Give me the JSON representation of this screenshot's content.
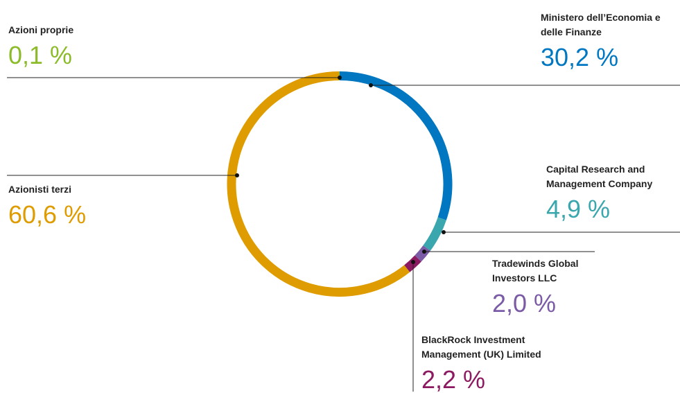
{
  "chart_data": {
    "type": "donut",
    "categories": [
      "Ministero dell’Economia e delle Finanze",
      "Capital Research and Management Company",
      "Tradewinds Global Investors LLC",
      "BlackRock Investment Management (UK) Limited",
      "Azionisti terzi",
      "Azioni proprie"
    ],
    "values": [
      30.2,
      4.9,
      2.0,
      2.2,
      60.6,
      0.1
    ],
    "value_labels": [
      "30,2 %",
      "4,9 %",
      "2,0 %",
      "2,2 %",
      "60,6 %",
      "0,1 %"
    ],
    "colors": [
      "#0077c0",
      "#3aa6ad",
      "#7b5aa6",
      "#8c1a60",
      "#df9c00",
      "#8cbb2a"
    ]
  }
}
